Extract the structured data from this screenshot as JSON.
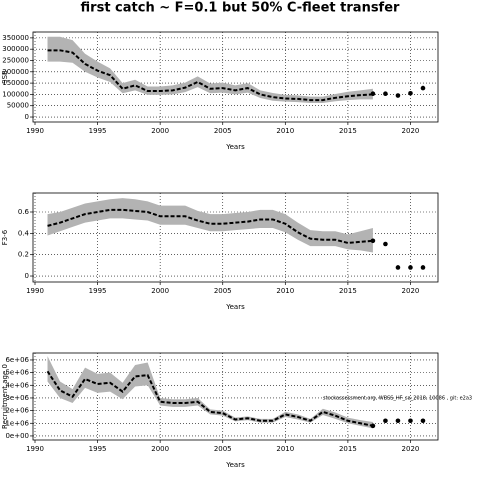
{
  "title": "first catch ~ F=0.1 but 50% C-fleet transfer",
  "chart_data": [
    {
      "type": "line",
      "y_label": "SSB",
      "x_label": "Years",
      "grid": true,
      "xlim": [
        1989.84,
        2022.2
      ],
      "xticks": [
        1990,
        1995,
        2000,
        2005,
        2010,
        2015,
        2020
      ],
      "ylim": [
        -22000,
        376000
      ],
      "yticks": [
        0,
        50000,
        100000,
        150000,
        200000,
        250000,
        300000,
        350000
      ],
      "band_color": "#b3b3b3",
      "line_color": "#000000",
      "x": [
        1991,
        1992,
        1993,
        1994,
        1995,
        1996,
        1997,
        1998,
        1999,
        2000,
        2001,
        2002,
        2003,
        2004,
        2005,
        2006,
        2007,
        2008,
        2009,
        2010,
        2011,
        2012,
        2013,
        2014,
        2015,
        2016,
        2017
      ],
      "values": [
        295000,
        295000,
        285000,
        235000,
        205000,
        185000,
        125000,
        140000,
        115000,
        115000,
        118000,
        130000,
        155000,
        125000,
        128000,
        118000,
        128000,
        100000,
        88000,
        82000,
        80000,
        75000,
        75000,
        85000,
        92000,
        97000,
        100000
      ],
      "lower": [
        245000,
        245000,
        240000,
        200000,
        175000,
        155000,
        105000,
        118000,
        98000,
        98000,
        100000,
        110000,
        132000,
        105000,
        108000,
        100000,
        108000,
        84000,
        72000,
        68000,
        66000,
        62000,
        62000,
        70000,
        75000,
        78000,
        78000
      ],
      "upper": [
        355000,
        355000,
        340000,
        280000,
        245000,
        215000,
        150000,
        165000,
        135000,
        135000,
        140000,
        152000,
        180000,
        148000,
        152000,
        140000,
        150000,
        118000,
        106000,
        98000,
        96000,
        90000,
        90000,
        102000,
        112000,
        118000,
        125000
      ],
      "forecast": {
        "x": [
          2017,
          2018,
          2019,
          2020,
          2021
        ],
        "values": [
          103000,
          103000,
          95000,
          105000,
          128000
        ]
      }
    },
    {
      "type": "line",
      "y_label": "F3-6",
      "x_label": "Years",
      "grid": true,
      "xlim": [
        1989.84,
        2022.2
      ],
      "xticks": [
        1990,
        1995,
        2000,
        2005,
        2010,
        2015,
        2020
      ],
      "ylim": [
        -0.056,
        0.778
      ],
      "yticks": [
        0,
        0.2,
        0.4,
        0.6
      ],
      "band_color": "#b3b3b3",
      "line_color": "#000000",
      "x": [
        1991,
        1992,
        1993,
        1994,
        1995,
        1996,
        1997,
        1998,
        1999,
        2000,
        2001,
        2002,
        2003,
        2004,
        2005,
        2006,
        2007,
        2008,
        2009,
        2010,
        2011,
        2012,
        2013,
        2014,
        2015,
        2016,
        2017
      ],
      "values": [
        0.47,
        0.5,
        0.54,
        0.58,
        0.6,
        0.62,
        0.62,
        0.61,
        0.6,
        0.56,
        0.56,
        0.56,
        0.52,
        0.49,
        0.49,
        0.5,
        0.51,
        0.53,
        0.53,
        0.49,
        0.41,
        0.35,
        0.34,
        0.34,
        0.31,
        0.32,
        0.33
      ],
      "lower": [
        0.38,
        0.42,
        0.46,
        0.5,
        0.52,
        0.54,
        0.54,
        0.53,
        0.52,
        0.48,
        0.48,
        0.48,
        0.45,
        0.42,
        0.42,
        0.43,
        0.44,
        0.45,
        0.45,
        0.41,
        0.34,
        0.28,
        0.28,
        0.28,
        0.25,
        0.24,
        0.22
      ],
      "upper": [
        0.58,
        0.6,
        0.64,
        0.68,
        0.7,
        0.72,
        0.73,
        0.72,
        0.7,
        0.66,
        0.66,
        0.66,
        0.61,
        0.58,
        0.58,
        0.59,
        0.6,
        0.62,
        0.62,
        0.58,
        0.5,
        0.43,
        0.42,
        0.42,
        0.39,
        0.42,
        0.45
      ],
      "forecast": {
        "x": [
          2017,
          2018,
          2019,
          2020,
          2021
        ],
        "values": [
          0.33,
          0.3,
          0.08,
          0.08,
          0.08
        ]
      }
    },
    {
      "type": "line",
      "y_label": "Recruitment age 0",
      "x_label": "Years",
      "grid": true,
      "annotation": "stockassessment.org, WBSS_HF_sa_2018, 10086 , git: e2a3",
      "xlim": [
        1989.84,
        2022.2
      ],
      "xticks": [
        1990,
        1995,
        2000,
        2005,
        2010,
        2015,
        2020
      ],
      "ylim": [
        -320000,
        6550000
      ],
      "yticks": [
        {
          "value": 0,
          "label": "0e+00"
        },
        {
          "value": 1000000,
          "label": "1e+06"
        },
        {
          "value": 2000000,
          "label": "2e+06"
        },
        {
          "value": 3000000,
          "label": "3e+06"
        },
        {
          "value": 4000000,
          "label": "4e+06"
        },
        {
          "value": 5000000,
          "label": "5e+06"
        },
        {
          "value": 6000000,
          "label": "6e+06"
        }
      ],
      "band_color": "#b3b3b3",
      "line_color": "#000000",
      "x": [
        1991,
        1992,
        1993,
        1994,
        1995,
        1996,
        1997,
        1998,
        1999,
        2000,
        2001,
        2002,
        2003,
        2004,
        2005,
        2006,
        2007,
        2008,
        2009,
        2010,
        2011,
        2012,
        2013,
        2014,
        2015,
        2016,
        2017
      ],
      "values": [
        5100000,
        3600000,
        3100000,
        4500000,
        4100000,
        4200000,
        3500000,
        4700000,
        4800000,
        2700000,
        2600000,
        2600000,
        2700000,
        1900000,
        1800000,
        1300000,
        1400000,
        1200000,
        1200000,
        1700000,
        1500000,
        1200000,
        1900000,
        1600000,
        1200000,
        1000000,
        800000
      ],
      "lower": [
        4300000,
        3000000,
        2600000,
        3800000,
        3400000,
        3500000,
        2900000,
        3900000,
        4000000,
        2400000,
        2300000,
        2300000,
        2400000,
        1700000,
        1600000,
        1150000,
        1250000,
        1050000,
        1050000,
        1500000,
        1300000,
        1050000,
        1650000,
        1350000,
        1000000,
        800000,
        600000
      ],
      "upper": [
        6300000,
        4300000,
        3700000,
        5400000,
        4900000,
        5000000,
        4200000,
        5600000,
        5800000,
        3000000,
        2900000,
        2900000,
        3000000,
        2100000,
        2000000,
        1450000,
        1550000,
        1350000,
        1350000,
        1900000,
        1700000,
        1350000,
        2150000,
        1850000,
        1450000,
        1250000,
        1100000
      ],
      "forecast": {
        "x": [
          2017,
          2018,
          2019,
          2020,
          2021
        ],
        "values": [
          800000,
          1200000,
          1200000,
          1200000,
          1200000
        ]
      }
    }
  ]
}
